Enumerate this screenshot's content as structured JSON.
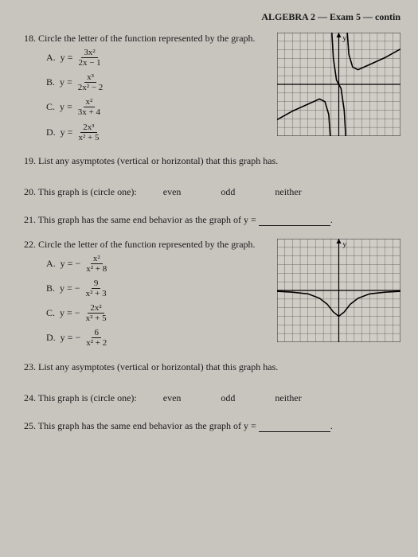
{
  "header": "ALGEBRA 2 — Exam 5 — contin",
  "q18": {
    "num": "18.",
    "text": "Circle the letter of the function represented by the graph.",
    "choices": {
      "A": {
        "letter": "A.",
        "prefix": "y =",
        "num": "3x²",
        "den": "2x − 1"
      },
      "B": {
        "letter": "B.",
        "prefix": "y =",
        "num": "x³",
        "den": "2x² − 2"
      },
      "C": {
        "letter": "C.",
        "prefix": "y =",
        "num": "x²",
        "den": "3x + 4"
      },
      "D": {
        "letter": "D.",
        "prefix": "y =",
        "num": "2x³",
        "den": "x² + 5"
      }
    },
    "graph": {
      "grid_color": "#555",
      "bg": "#d0cdc6",
      "axis_color": "#000",
      "curve_color": "#000",
      "xrange": [
        -8,
        8
      ],
      "yrange": [
        -6,
        6
      ],
      "asymptotes_x": [
        -1,
        1
      ],
      "curves": [
        [
          [
            -8,
            -4.1
          ],
          [
            -6,
            -3.1
          ],
          [
            -4,
            -2.3
          ],
          [
            -2.5,
            -1.7
          ],
          [
            -1.8,
            -2.0
          ],
          [
            -1.3,
            -3.5
          ],
          [
            -1.1,
            -6
          ]
        ],
        [
          [
            -0.9,
            6
          ],
          [
            -0.7,
            3
          ],
          [
            -0.3,
            0.5
          ],
          [
            0,
            0
          ],
          [
            0.3,
            -0.5
          ],
          [
            0.7,
            -3
          ],
          [
            0.9,
            -6
          ]
        ],
        [
          [
            1.1,
            6
          ],
          [
            1.3,
            3.5
          ],
          [
            1.8,
            2.0
          ],
          [
            2.5,
            1.7
          ],
          [
            4,
            2.3
          ],
          [
            6,
            3.1
          ],
          [
            8,
            4.1
          ]
        ]
      ]
    }
  },
  "q19": {
    "num": "19.",
    "text": "List any asymptotes (vertical or horizontal) that this graph has."
  },
  "q20": {
    "num": "20.",
    "text": "This graph is (circle one):",
    "opts": {
      "even": "even",
      "odd": "odd",
      "neither": "neither"
    }
  },
  "q21": {
    "num": "21.",
    "text": "This graph has the same end behavior as the graph of y ="
  },
  "q22": {
    "num": "22.",
    "text": "Circle the letter of the function represented by the graph.",
    "choices": {
      "A": {
        "letter": "A.",
        "prefix": "y = −",
        "num": "x²",
        "den": "x² + 8"
      },
      "B": {
        "letter": "B.",
        "prefix": "y = −",
        "num": "9",
        "den": "x² + 3"
      },
      "C": {
        "letter": "C.",
        "prefix": "y = −",
        "num": "2x²",
        "den": "x² + 5"
      },
      "D": {
        "letter": "D.",
        "prefix": "y = −",
        "num": "6",
        "den": "x² + 2"
      }
    },
    "graph": {
      "grid_color": "#555",
      "bg": "#d0cdc6",
      "axis_color": "#000",
      "curve_color": "#000",
      "xrange": [
        -8,
        8
      ],
      "yrange": [
        -6,
        6
      ],
      "curves": [
        [
          [
            -8,
            -0.1
          ],
          [
            -6,
            -0.2
          ],
          [
            -4,
            -0.4
          ],
          [
            -2.5,
            -0.9
          ],
          [
            -1.5,
            -1.6
          ],
          [
            -0.7,
            -2.5
          ],
          [
            0,
            -3
          ],
          [
            0.7,
            -2.5
          ],
          [
            1.5,
            -1.6
          ],
          [
            2.5,
            -0.9
          ],
          [
            4,
            -0.4
          ],
          [
            6,
            -0.2
          ],
          [
            8,
            -0.1
          ]
        ]
      ]
    }
  },
  "q23": {
    "num": "23.",
    "text": "List any asymptotes (vertical or horizontal) that this graph has."
  },
  "q24": {
    "num": "24.",
    "text": "This graph is (circle one):",
    "opts": {
      "even": "even",
      "odd": "odd",
      "neither": "neither"
    }
  },
  "q25": {
    "num": "25.",
    "text": "This graph has the same end behavior as the graph of y ="
  }
}
